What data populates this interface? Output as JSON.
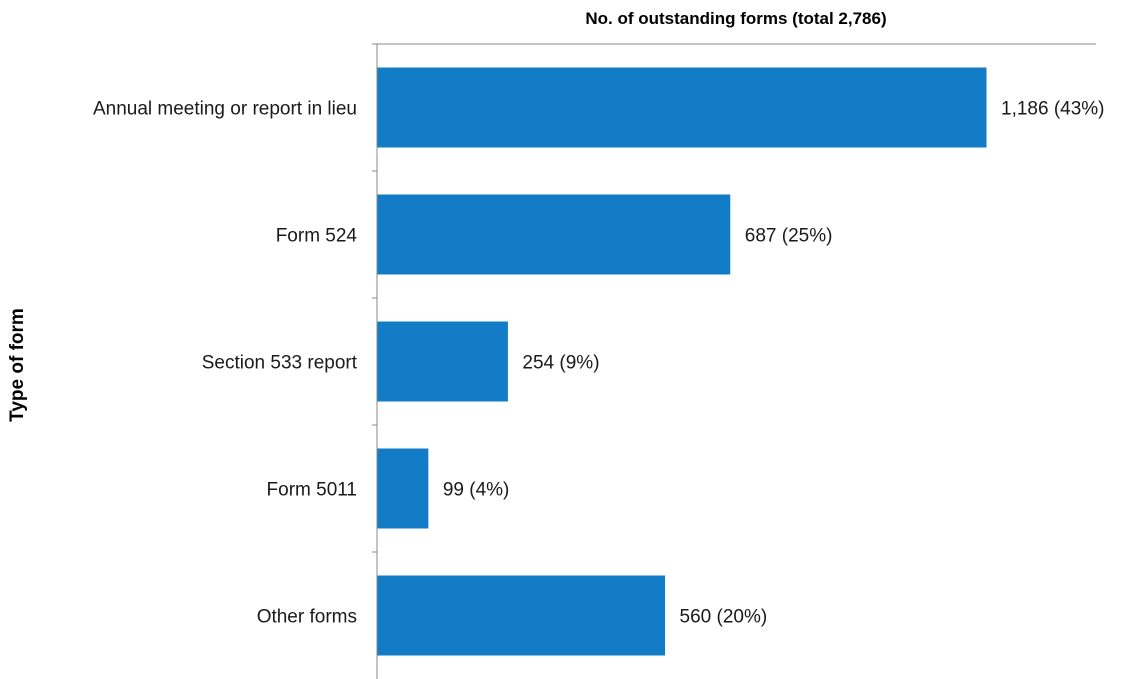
{
  "chart_data": {
    "type": "bar",
    "orientation": "horizontal",
    "title": "No. of outstanding forms (total 2,786)",
    "xlabel": "",
    "ylabel": "Type of form",
    "categories": [
      "Annual meeting or report in lieu",
      "Form 524",
      "Section 533 report",
      "Form 5011",
      "Other forms"
    ],
    "values": [
      1186,
      687,
      254,
      99,
      560
    ],
    "data_labels": [
      "1,186 (43%)",
      "687 (25%)",
      "254 (9%)",
      "99 (4%)",
      "560 (20%)"
    ],
    "xlim": [
      0,
      1400
    ],
    "grid": false,
    "legend": "none",
    "bar_color": "#127cc6",
    "axis_color": "#888888"
  }
}
